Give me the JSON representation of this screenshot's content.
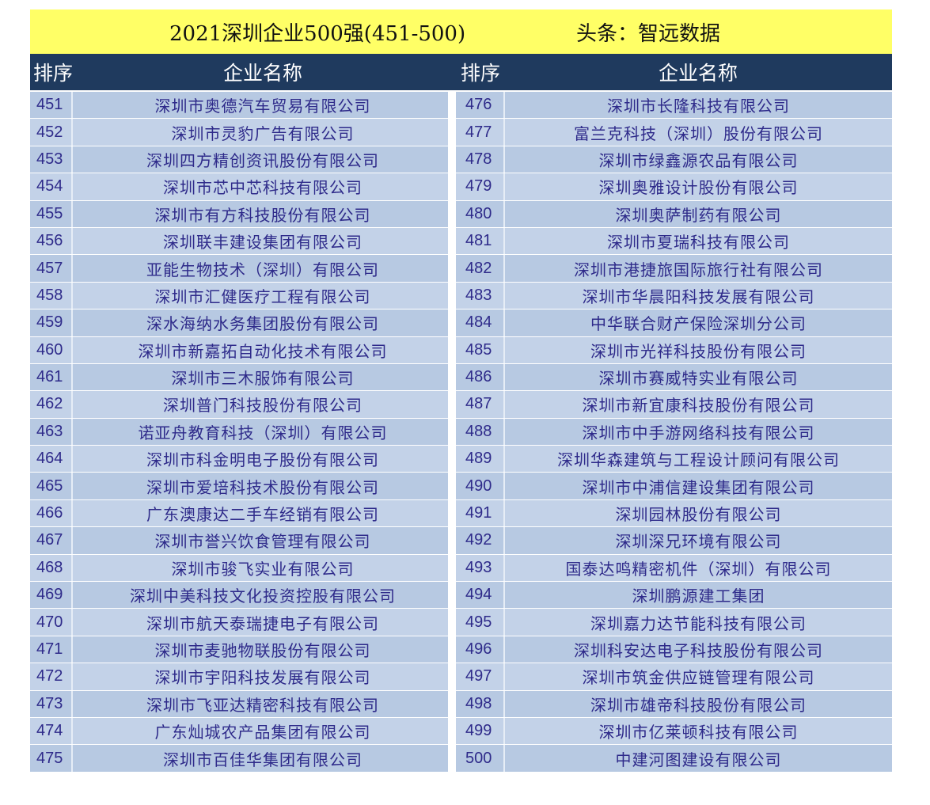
{
  "title": "2021深圳企业500强(451-500)",
  "source": "头条：智远数据",
  "headers": {
    "rank": "排序",
    "name": "企业名称"
  },
  "left_rows": [
    {
      "rank": "451",
      "name": "深圳市奥德汽车贸易有限公司"
    },
    {
      "rank": "452",
      "name": "深圳市灵豹广告有限公司"
    },
    {
      "rank": "453",
      "name": "深圳四方精创资讯股份有限公司"
    },
    {
      "rank": "454",
      "name": "深圳市芯中芯科技有限公司"
    },
    {
      "rank": "455",
      "name": "深圳市有方科技股份有限公司"
    },
    {
      "rank": "456",
      "name": "深圳联丰建设集团有限公司"
    },
    {
      "rank": "457",
      "name": "亚能生物技术（深圳）有限公司"
    },
    {
      "rank": "458",
      "name": "深圳市汇健医疗工程有限公司"
    },
    {
      "rank": "459",
      "name": "深水海纳水务集团股份有限公司"
    },
    {
      "rank": "460",
      "name": "深圳市新嘉拓自动化技术有限公司"
    },
    {
      "rank": "461",
      "name": "深圳市三木服饰有限公司"
    },
    {
      "rank": "462",
      "name": "深圳普门科技股份有限公司"
    },
    {
      "rank": "463",
      "name": "诺亚舟教育科技（深圳）有限公司"
    },
    {
      "rank": "464",
      "name": "深圳市科金明电子股份有限公司"
    },
    {
      "rank": "465",
      "name": "深圳市爱培科技术股份有限公司"
    },
    {
      "rank": "466",
      "name": "广东澳康达二手车经销有限公司"
    },
    {
      "rank": "467",
      "name": "深圳市誉兴饮食管理有限公司"
    },
    {
      "rank": "468",
      "name": "深圳市骏飞实业有限公司"
    },
    {
      "rank": "469",
      "name": "深圳中美科技文化投资控股有限公司"
    },
    {
      "rank": "470",
      "name": "深圳市航天泰瑞捷电子有限公司"
    },
    {
      "rank": "471",
      "name": "深圳市麦驰物联股份有限公司"
    },
    {
      "rank": "472",
      "name": "深圳市宇阳科技发展有限公司"
    },
    {
      "rank": "473",
      "name": "深圳市飞亚达精密科技有限公司"
    },
    {
      "rank": "474",
      "name": "广东灿城农产品集团有限公司"
    },
    {
      "rank": "475",
      "name": "深圳市百佳华集团有限公司"
    }
  ],
  "right_rows": [
    {
      "rank": "476",
      "name": "深圳市长隆科技有限公司"
    },
    {
      "rank": "477",
      "name": "富兰克科技（深圳）股份有限公司"
    },
    {
      "rank": "478",
      "name": "深圳市绿鑫源农品有限公司"
    },
    {
      "rank": "479",
      "name": "深圳奥雅设计股份有限公司"
    },
    {
      "rank": "480",
      "name": "深圳奥萨制药有限公司"
    },
    {
      "rank": "481",
      "name": "深圳市夏瑞科技有限公司"
    },
    {
      "rank": "482",
      "name": "深圳市港捷旅国际旅行社有限公司"
    },
    {
      "rank": "483",
      "name": "深圳市华晨阳科技发展有限公司"
    },
    {
      "rank": "484",
      "name": "中华联合财产保险深圳分公司"
    },
    {
      "rank": "485",
      "name": "深圳市光祥科技股份有限公司"
    },
    {
      "rank": "486",
      "name": "深圳市赛威特实业有限公司"
    },
    {
      "rank": "487",
      "name": "深圳市新宜康科技股份有限公司"
    },
    {
      "rank": "488",
      "name": "深圳市中手游网络科技有限公司"
    },
    {
      "rank": "489",
      "name": "深圳华森建筑与工程设计顾问有限公司"
    },
    {
      "rank": "490",
      "name": "深圳市中浦信建设集团有限公司"
    },
    {
      "rank": "491",
      "name": "深圳园林股份有限公司"
    },
    {
      "rank": "492",
      "name": "深圳深兄环境有限公司"
    },
    {
      "rank": "493",
      "name": "国泰达鸣精密机件（深圳）有限公司"
    },
    {
      "rank": "494",
      "name": "深圳鹏源建工集团"
    },
    {
      "rank": "495",
      "name": "深圳嘉力达节能科技有限公司"
    },
    {
      "rank": "496",
      "name": "深圳科安达电子科技股份有限公司"
    },
    {
      "rank": "497",
      "name": "深圳市筑金供应链管理有限公司"
    },
    {
      "rank": "498",
      "name": "深圳市雄帝科技股份有限公司"
    },
    {
      "rank": "499",
      "name": "深圳市亿莱顿科技有限公司"
    },
    {
      "rank": "500",
      "name": "中建河图建设有限公司"
    }
  ]
}
